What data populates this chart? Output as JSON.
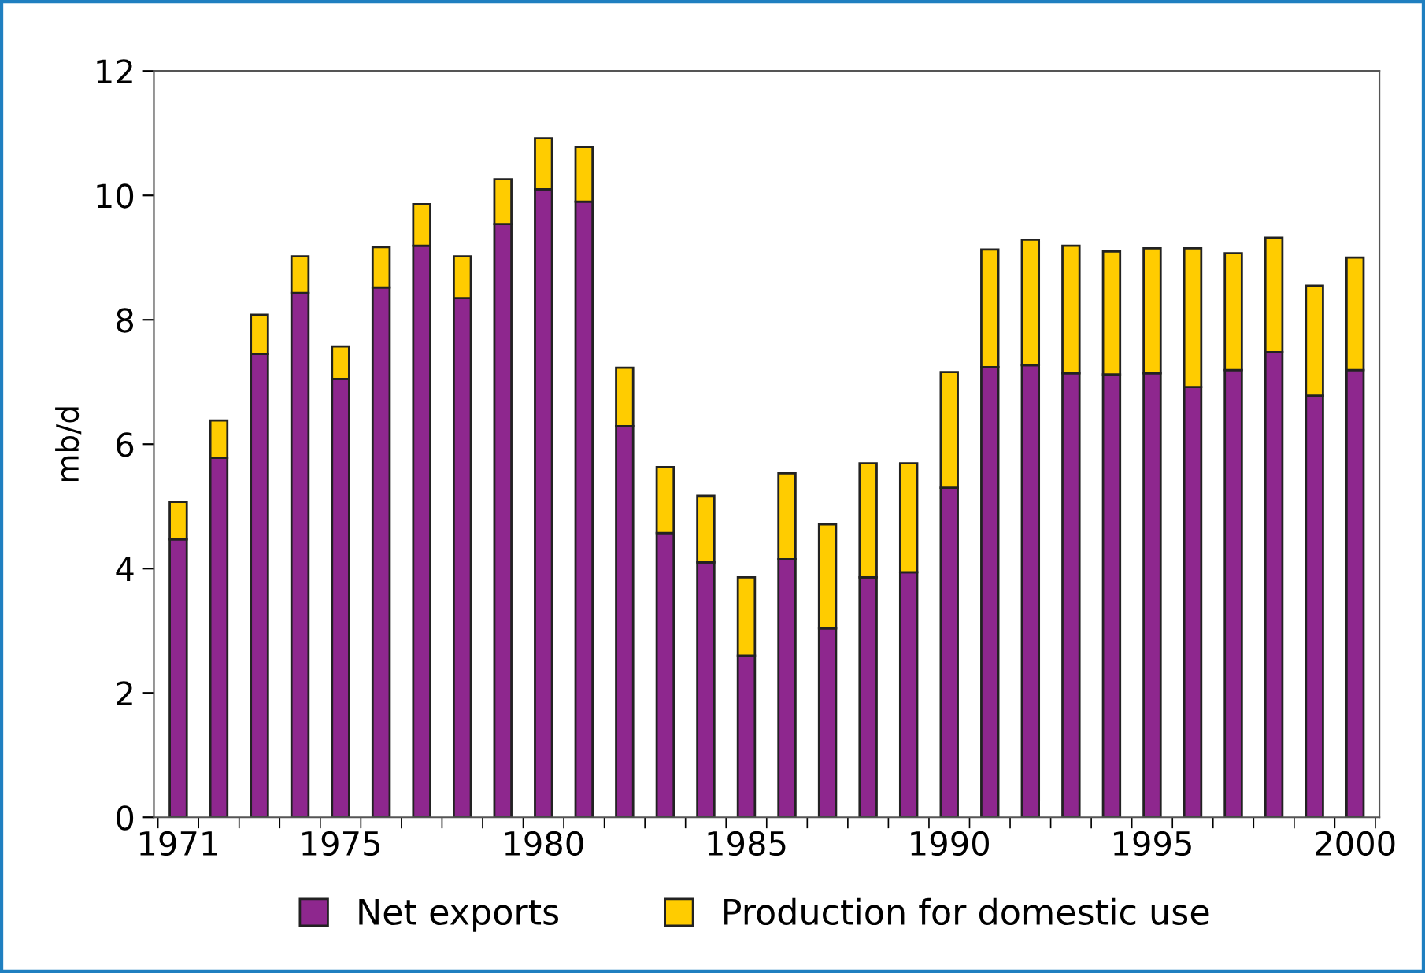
{
  "chart_data": {
    "type": "bar",
    "stacked": true,
    "ylabel": "mb/d",
    "categories": [
      "1971",
      null,
      null,
      null,
      "1975",
      null,
      null,
      null,
      null,
      "1980",
      null,
      null,
      null,
      null,
      "1985",
      null,
      null,
      null,
      null,
      "1990",
      null,
      null,
      null,
      null,
      "1995",
      null,
      null,
      null,
      null,
      "2000"
    ],
    "series": [
      {
        "name": "Net exports",
        "color": "#8e278e",
        "values": [
          4.47,
          5.78,
          7.45,
          8.43,
          7.05,
          8.52,
          9.19,
          8.35,
          9.54,
          10.1,
          9.9,
          6.29,
          4.57,
          4.1,
          2.6,
          4.15,
          3.04,
          3.86,
          3.94,
          5.3,
          7.24,
          7.27,
          7.14,
          7.12,
          7.14,
          6.92,
          7.19,
          7.48,
          6.78,
          7.19
        ]
      },
      {
        "name": "Production for domestic use",
        "color": "#ffcc00",
        "values": [
          0.6,
          0.6,
          0.63,
          0.59,
          0.52,
          0.65,
          0.67,
          0.67,
          0.72,
          0.82,
          0.88,
          0.94,
          1.06,
          1.07,
          1.26,
          1.38,
          1.67,
          1.83,
          1.75,
          1.86,
          1.89,
          2.02,
          2.05,
          1.98,
          2.01,
          2.23,
          1.88,
          1.84,
          1.77,
          1.81
        ]
      }
    ],
    "ylim": [
      0,
      12
    ],
    "yticks": [
      0,
      2,
      4,
      6,
      8,
      10,
      12
    ],
    "grid": false,
    "legend": "bottom"
  }
}
